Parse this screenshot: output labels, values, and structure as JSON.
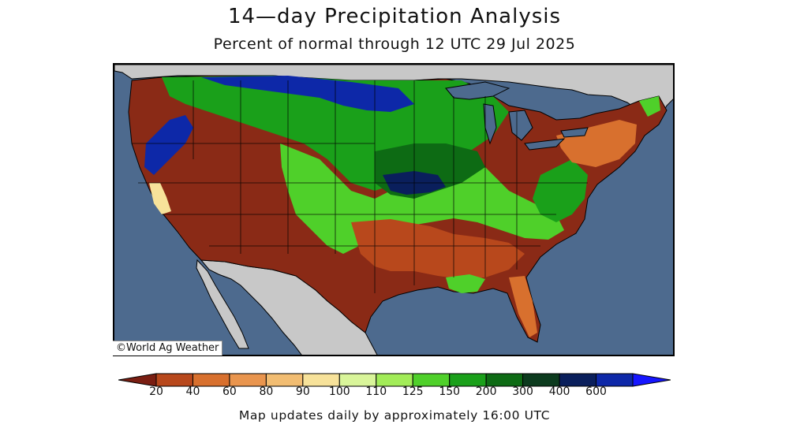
{
  "title": "14—day Precipitation Analysis",
  "subtitle": "Percent of normal through 12 UTC 29 Jul 2025",
  "credit": "©World Ag Weather",
  "footnote": "Map updates daily by approximately 16:00 UTC",
  "legend": {
    "bins": [
      {
        "color": "#7a1e12"
      },
      {
        "color": "#b8481c"
      },
      {
        "color": "#d8702e"
      },
      {
        "color": "#e9954e"
      },
      {
        "color": "#f2bd72"
      },
      {
        "color": "#f7e29a"
      },
      {
        "color": "#d9f59a"
      },
      {
        "color": "#a2ec58"
      },
      {
        "color": "#4fd02a"
      },
      {
        "color": "#1aa01a"
      },
      {
        "color": "#0d6b14"
      },
      {
        "color": "#0c3b1e"
      },
      {
        "color": "#0a1f5c"
      },
      {
        "color": "#0d28a8"
      },
      {
        "color": "#1616ff"
      }
    ],
    "tick_labels": [
      "20",
      "40",
      "60",
      "80",
      "90",
      "100",
      "110",
      "125",
      "150",
      "200",
      "300",
      "400",
      "600"
    ]
  },
  "colors": {
    "ocean": "#4d6a8e",
    "land_outside": "#c8c8c8",
    "lakes": "#4d6a8e"
  }
}
